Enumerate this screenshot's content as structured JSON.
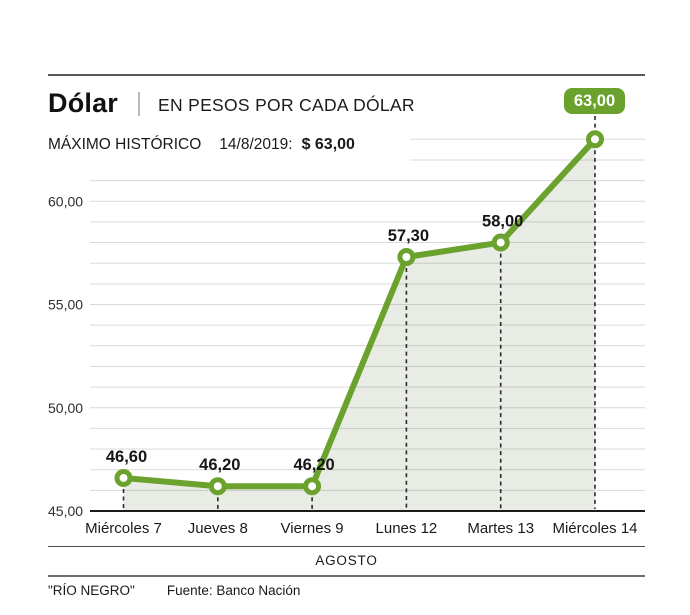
{
  "header": {
    "title": "Dólar",
    "tagline": "EN PESOS POR CADA DÓLAR"
  },
  "note": {
    "label": "MÁXIMO HISTÓRICO",
    "date": "14/8/2019:",
    "value": "$ 63,00"
  },
  "chart_data": {
    "type": "line",
    "title": "Dólar — en pesos por cada dólar",
    "categories": [
      "Miércoles 7",
      "Jueves 8",
      "Viernes 9",
      "Lunes 12",
      "Martes 13",
      "Miércoles 14"
    ],
    "values": [
      46.6,
      46.2,
      46.2,
      57.3,
      58.0,
      63.0
    ],
    "point_labels": [
      "46,60",
      "46,20",
      "46,20",
      "57,30",
      "58,00",
      ""
    ],
    "badge_label": "63,00",
    "xlabel": "AGOSTO",
    "ylabel": "",
    "ylim": [
      45,
      63
    ],
    "grid_step": 1,
    "y_ticks": [
      {
        "value": 45,
        "label": "45,00"
      },
      {
        "value": 50,
        "label": "50,00"
      },
      {
        "value": 55,
        "label": "55,00"
      },
      {
        "value": 60,
        "label": "60,00"
      }
    ],
    "legend": "none",
    "grid": "on",
    "line_color": "#6ba22e",
    "marker_fill": "#ffffff",
    "area_fill": "rgba(78,112,52,0.13)",
    "gridline_color": "#d9d9d9",
    "axis_color": "#1a1a1a",
    "dash_color": "#2a2a2a"
  },
  "footer": {
    "brand": "\"RÍO NEGRO\"",
    "source": "Fuente: Banco Nación"
  }
}
